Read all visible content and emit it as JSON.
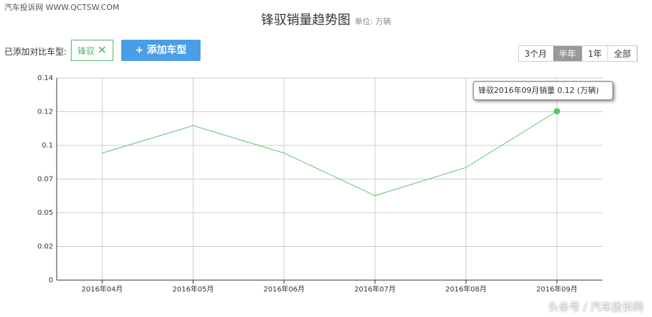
{
  "header": {
    "watermark": "汽车投诉网  WWW.QCTSW.COM",
    "compare_label": "已添加对比车型:",
    "tag": "锋驭",
    "add_button": "+ 添加车型",
    "ranges": [
      "3个月",
      "半年",
      "1年",
      "全部"
    ],
    "bottom_watermark": "头条号 / 汽车投诉网"
  },
  "chart_data": {
    "type": "line",
    "title": "锋驭销量趋势图",
    "unit": "单位: 万辆",
    "categories": [
      "2016年04月",
      "2016年05月",
      "2016年06月",
      "2016年07月",
      "2016年08月",
      "2016年09月"
    ],
    "series": [
      {
        "name": "锋驭",
        "color": "#5cc46e",
        "values": [
          0.088,
          0.107,
          0.088,
          0.0585,
          0.078,
          0.117
        ]
      }
    ],
    "ylim": [
      0,
      0.14
    ],
    "yticks": [
      0,
      {
        "value": 0.023333,
        "label": "0.02"
      },
      {
        "value": 0.046667,
        "label": "0.05"
      },
      0.07,
      {
        "value": 0.093333,
        "label": "0.1"
      },
      {
        "value": 0.116667,
        "label": "0.12"
      },
      0.14
    ],
    "grid": true,
    "tooltip": "锋驭2016年09月销量 0.12 (万辆)"
  }
}
